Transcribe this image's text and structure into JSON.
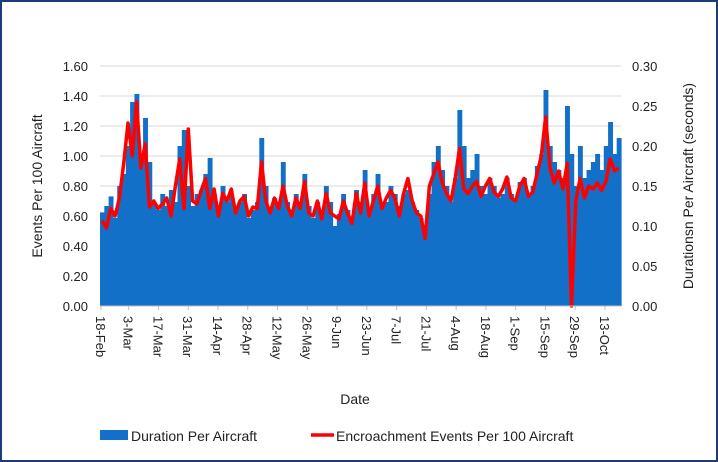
{
  "chart_data": {
    "type": "bar+line",
    "title": "",
    "xlabel": "Date",
    "ylabel_left": "Events Per 100 Aircraft",
    "ylabel_right": "Durationsn Per Aircraft (seconds)",
    "ylim_left": [
      0,
      1.6
    ],
    "ylim_right": [
      0,
      0.3
    ],
    "yticks_left": [
      "0.00",
      "0.20",
      "0.40",
      "0.60",
      "0.80",
      "1.00",
      "1.20",
      "1.40",
      "1.60"
    ],
    "yticks_right": [
      "0.00",
      "0.05",
      "0.10",
      "0.15",
      "0.20",
      "0.25",
      "0.30"
    ],
    "xticks": [
      "18-Feb",
      "3-Mar",
      "17-Mar",
      "31-Mar",
      "14-Apr",
      "28-Apr",
      "12-May",
      "26-May",
      "9-Jun",
      "23-Jun",
      "7-Jul",
      "21-Jul",
      "4-Aug",
      "18-Aug",
      "1-Sep",
      "15-Sep",
      "29-Sep",
      "13-Oct"
    ],
    "grid": true,
    "legend_position": "bottom",
    "x_start": "18-Feb",
    "x_step_days": 2,
    "series": [
      {
        "name": "Duration Per Aircraft",
        "type": "bar",
        "axis": "right",
        "color": "#1270c8",
        "values": [
          0.117,
          0.125,
          0.137,
          0.11,
          0.15,
          0.165,
          0.2,
          0.255,
          0.265,
          0.175,
          0.235,
          0.18,
          0.13,
          0.12,
          0.14,
          0.125,
          0.145,
          0.13,
          0.2,
          0.22,
          0.15,
          0.125,
          0.14,
          0.145,
          0.165,
          0.185,
          0.14,
          0.12,
          0.15,
          0.13,
          0.14,
          0.12,
          0.13,
          0.14,
          0.11,
          0.12,
          0.13,
          0.21,
          0.15,
          0.12,
          0.135,
          0.13,
          0.18,
          0.13,
          0.12,
          0.14,
          0.13,
          0.165,
          0.125,
          0.11,
          0.13,
          0.12,
          0.15,
          0.13,
          0.1,
          0.115,
          0.14,
          0.12,
          0.11,
          0.145,
          0.13,
          0.17,
          0.12,
          0.14,
          0.165,
          0.125,
          0.13,
          0.15,
          0.14,
          0.125,
          0.14,
          0.145,
          0.13,
          0.12,
          0.11,
          0.1,
          0.14,
          0.18,
          0.2,
          0.17,
          0.15,
          0.13,
          0.16,
          0.245,
          0.2,
          0.16,
          0.17,
          0.19,
          0.15,
          0.14,
          0.16,
          0.15,
          0.135,
          0.14,
          0.16,
          0.14,
          0.135,
          0.155,
          0.16,
          0.14,
          0.15,
          0.175,
          0.19,
          0.27,
          0.2,
          0.18,
          0.17,
          0.16,
          0.25,
          0.19,
          0.15,
          0.2,
          0.16,
          0.17,
          0.18,
          0.19,
          0.17,
          0.2,
          0.23,
          0.19,
          0.21
        ],
        "note": "values are in seconds (right axis)"
      },
      {
        "name": "Encroachment Events Per 100 Aircraft",
        "type": "line",
        "axis": "left",
        "color": "#ff0000",
        "values": [
          0.57,
          0.52,
          0.65,
          0.6,
          0.72,
          0.95,
          1.22,
          1.0,
          1.36,
          0.92,
          1.08,
          0.66,
          0.7,
          0.65,
          0.68,
          0.72,
          0.6,
          0.8,
          0.98,
          0.65,
          1.18,
          0.7,
          0.68,
          0.77,
          0.85,
          0.65,
          0.78,
          0.6,
          0.75,
          0.7,
          0.78,
          0.62,
          0.7,
          0.73,
          0.6,
          0.66,
          0.65,
          0.96,
          0.7,
          0.62,
          0.72,
          0.65,
          0.8,
          0.67,
          0.6,
          0.72,
          0.65,
          0.83,
          0.62,
          0.6,
          0.7,
          0.58,
          0.75,
          0.62,
          0.6,
          0.58,
          0.7,
          0.62,
          0.55,
          0.75,
          0.62,
          0.82,
          0.6,
          0.7,
          0.8,
          0.65,
          0.72,
          0.77,
          0.72,
          0.6,
          0.75,
          0.85,
          0.7,
          0.62,
          0.6,
          0.45,
          0.8,
          0.88,
          0.96,
          0.82,
          0.75,
          0.7,
          0.85,
          1.05,
          0.78,
          0.75,
          0.8,
          0.83,
          0.73,
          0.8,
          0.85,
          0.76,
          0.73,
          0.78,
          0.86,
          0.72,
          0.7,
          0.8,
          0.85,
          0.73,
          0.76,
          0.88,
          1.0,
          1.26,
          0.92,
          0.82,
          0.9,
          0.78,
          0.95,
          0.0,
          0.7,
          0.85,
          0.72,
          0.8,
          0.78,
          0.82,
          0.77,
          0.83,
          0.98,
          0.9,
          0.92
        ]
      }
    ]
  }
}
